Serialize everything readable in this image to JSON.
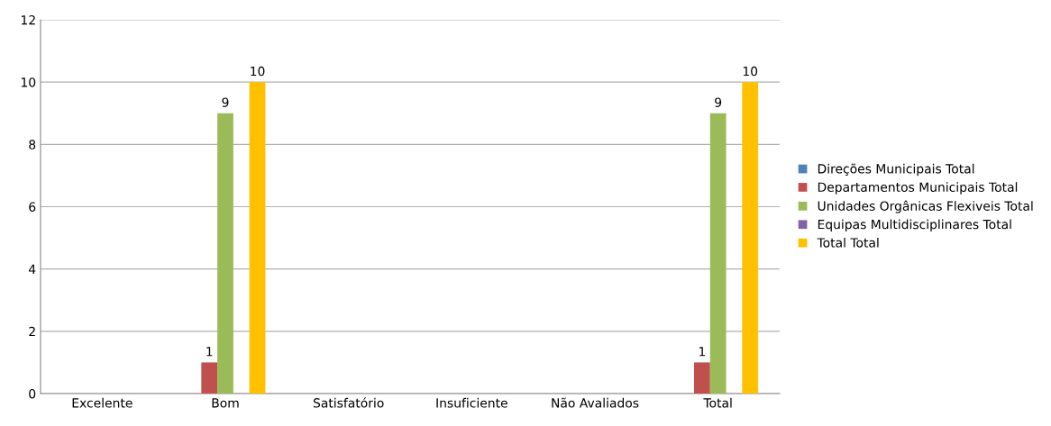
{
  "chart_data": {
    "type": "bar",
    "categories": [
      "Excelente",
      "Bom",
      "Satisfatório",
      "Insuficiente",
      "Não Avaliados",
      "Total"
    ],
    "series": [
      {
        "name": "Direções Municipais Total",
        "color": "#4f81bd",
        "values": [
          null,
          null,
          null,
          null,
          null,
          null
        ]
      },
      {
        "name": "Departamentos Municipais Total",
        "color": "#c0504d",
        "values": [
          null,
          1,
          null,
          null,
          null,
          1
        ]
      },
      {
        "name": "Unidades Orgânicas Flexiveis Total",
        "color": "#9bbb59",
        "values": [
          null,
          9,
          null,
          null,
          null,
          9
        ]
      },
      {
        "name": "Equipas Multidisciplinares Total",
        "color": "#8064a2",
        "values": [
          null,
          null,
          null,
          null,
          null,
          null
        ]
      },
      {
        "name": "Total Total",
        "color": "#ffc000",
        "values": [
          null,
          10,
          null,
          null,
          null,
          10
        ]
      }
    ],
    "ylim": [
      0,
      12
    ],
    "yticks": [
      0,
      2,
      4,
      6,
      8,
      10,
      12
    ],
    "grid": "y",
    "legend": "right",
    "data_labels": true
  }
}
